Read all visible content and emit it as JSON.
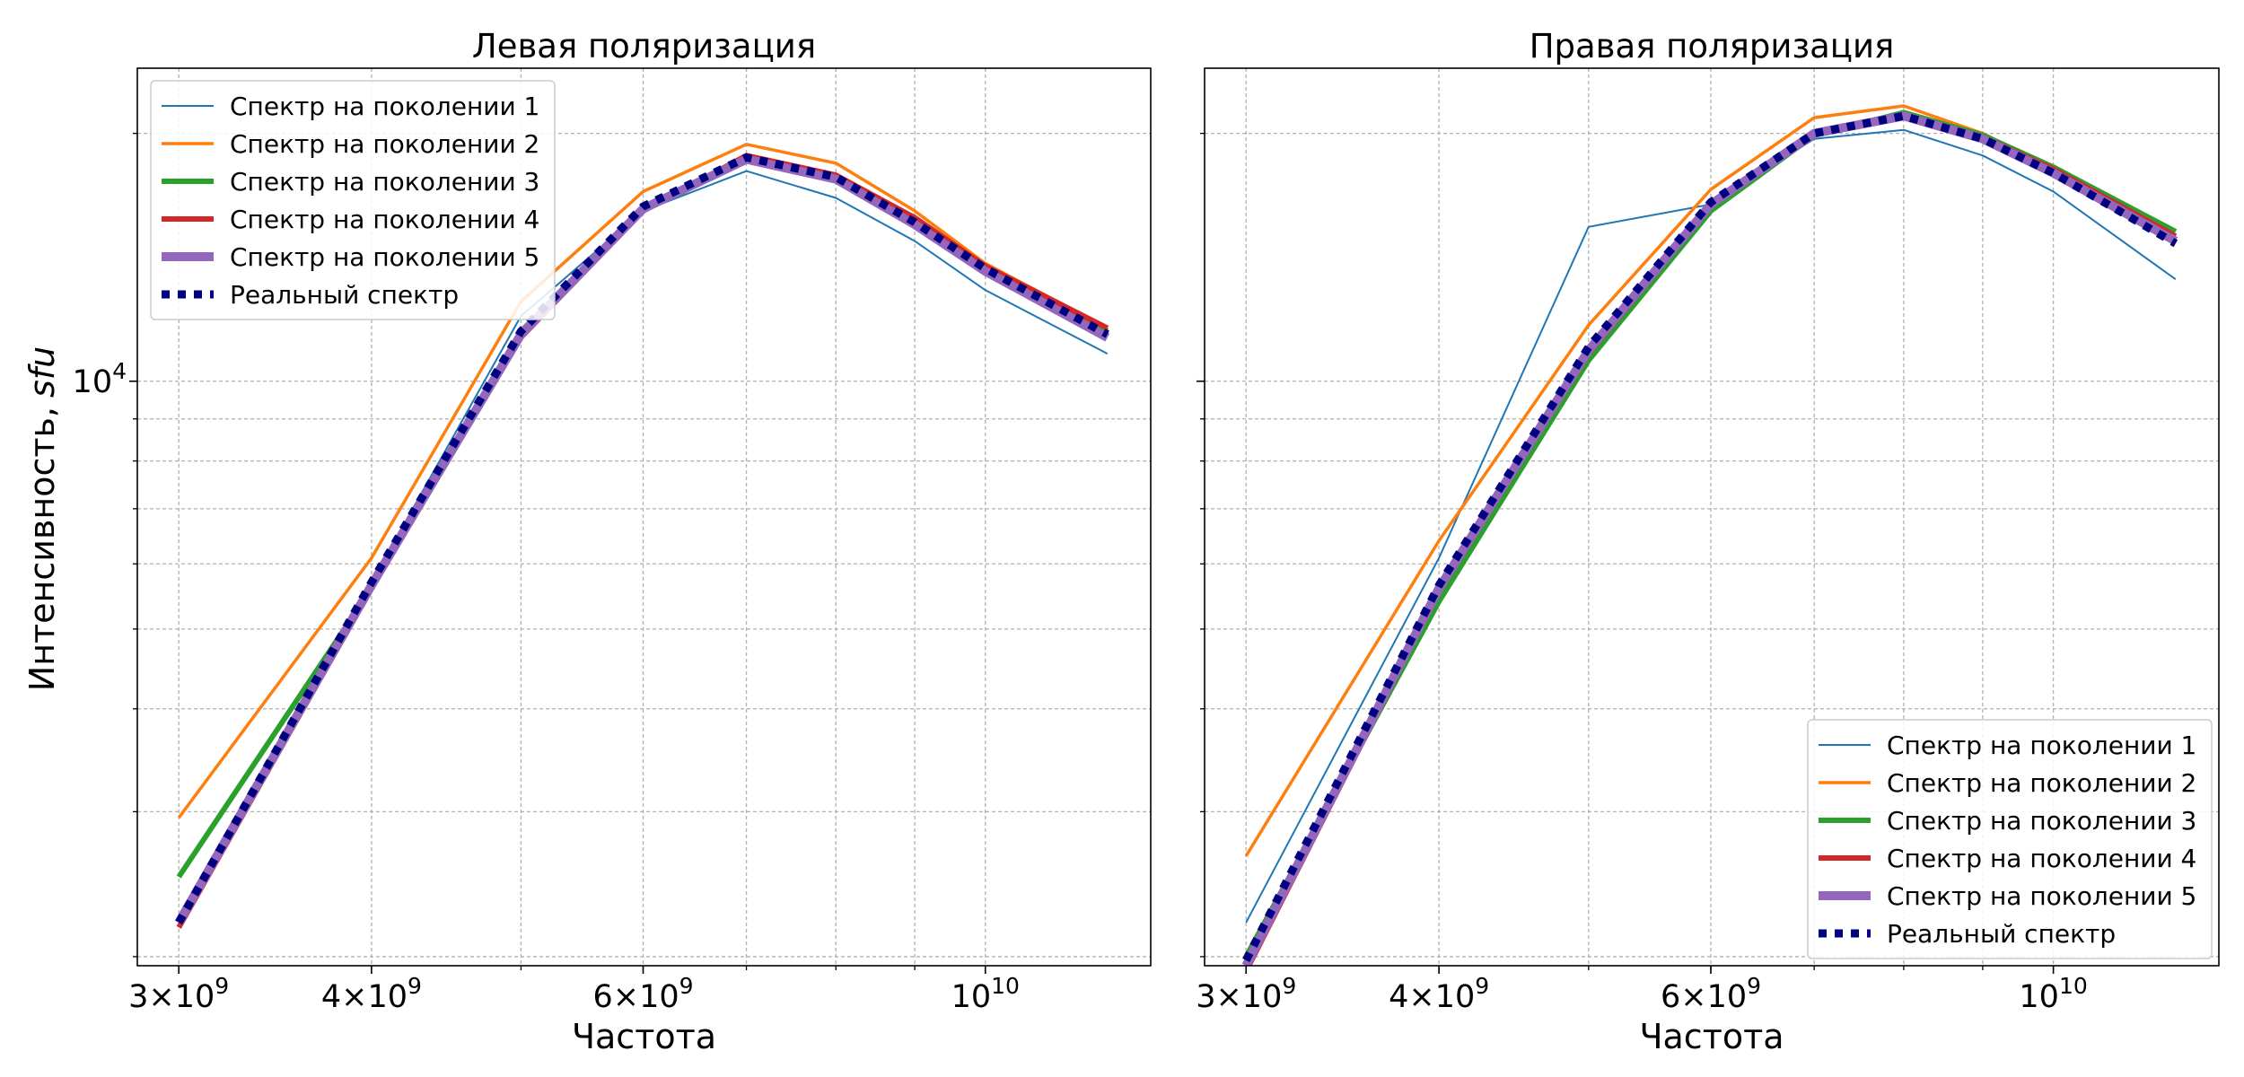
{
  "figure": {
    "ylabel_main": "Интенсивность,",
    "ylabel_unit": "sfu"
  },
  "chart_data": [
    {
      "type": "line",
      "title": "Левая поляризация",
      "xlabel": "Частота",
      "xscale": "log",
      "yscale": "log",
      "xlim": [
        2820000000.0,
        12800000000.0
      ],
      "ylim": [
        1950,
        24000
      ],
      "xticks": [
        {
          "value": 3000000000.0,
          "mant": "3",
          "exp": "9"
        },
        {
          "value": 4000000000.0,
          "mant": "4",
          "exp": "9"
        },
        {
          "value": 6000000000.0,
          "mant": "6",
          "exp": "9"
        },
        {
          "value": 10000000000.0,
          "mant": "",
          "exp": "10"
        }
      ],
      "yticks": [
        {
          "value": 10000,
          "exp": "4"
        }
      ],
      "grid": true,
      "legend_position": "upper-left",
      "x": [
        3000000000.0,
        4000000000.0,
        5000000000.0,
        6000000000.0,
        7000000000.0,
        8000000000.0,
        9000000000.0,
        10000000000.0,
        12000000000.0
      ],
      "series": [
        {
          "name": "Спектр на поколении 1",
          "color": "#1f77b4",
          "style": "thin",
          "values": [
            2200,
            5700,
            12000,
            16100,
            18000,
            16700,
            14800,
            12900,
            10800
          ]
        },
        {
          "name": "Спектр на поколении 2",
          "color": "#ff7f0e",
          "style": "medium",
          "values": [
            2950,
            6100,
            12500,
            17000,
            19400,
            18400,
            16100,
            13900,
            11600
          ]
        },
        {
          "name": "Спектр на поколении 3",
          "color": "#2ca02c",
          "style": "thick",
          "values": [
            2500,
            5600,
            11500,
            16100,
            18700,
            17700,
            15700,
            13700,
            11500
          ]
        },
        {
          "name": "Спектр на поколении 4",
          "color": "#d62728",
          "style": "thick",
          "values": [
            2170,
            5600,
            11300,
            16100,
            18800,
            17800,
            15800,
            13800,
            11600
          ]
        },
        {
          "name": "Спектр на поколении 5",
          "color": "#9467bd",
          "style": "xthick",
          "values": [
            2200,
            5650,
            11400,
            16200,
            18600,
            17600,
            15500,
            13600,
            11300
          ]
        },
        {
          "name": "Реальный спектр",
          "color": "#000080",
          "style": "dotted",
          "values": [
            2200,
            5700,
            11500,
            16300,
            18700,
            17700,
            15600,
            13700,
            11400
          ]
        }
      ]
    },
    {
      "type": "line",
      "title": "Правая поляризация",
      "xlabel": "Частота",
      "xscale": "log",
      "yscale": "log",
      "xlim": [
        2820000000.0,
        12800000000.0
      ],
      "ylim": [
        1950,
        24000
      ],
      "xticks": [
        {
          "value": 3000000000.0,
          "mant": "3",
          "exp": "9"
        },
        {
          "value": 4000000000.0,
          "mant": "4",
          "exp": "9"
        },
        {
          "value": 6000000000.0,
          "mant": "6",
          "exp": "9"
        },
        {
          "value": 10000000000.0,
          "mant": "",
          "exp": "10"
        }
      ],
      "yticks": [
        {
          "value": 10000,
          "exp": "4"
        }
      ],
      "grid": true,
      "legend_position": "lower-right",
      "x": [
        3000000000.0,
        4000000000.0,
        5000000000.0,
        6000000000.0,
        7000000000.0,
        8000000000.0,
        9000000000.0,
        10000000000.0,
        12000000000.0
      ],
      "series": [
        {
          "name": "Спектр на поколении 1",
          "color": "#1f77b4",
          "style": "thin",
          "values": [
            2200,
            6100,
            15400,
            16400,
            19700,
            20200,
            18800,
            17000,
            13300
          ]
        },
        {
          "name": "Спектр на поколении 2",
          "color": "#ff7f0e",
          "style": "medium",
          "values": [
            2650,
            6400,
            11700,
            17100,
            20900,
            21600,
            20000,
            18100,
            15000
          ]
        },
        {
          "name": "Спектр на поколении 3",
          "color": "#2ca02c",
          "style": "thick",
          "values": [
            2000,
            5400,
            10600,
            16100,
            19900,
            21200,
            19900,
            18200,
            15200
          ]
        },
        {
          "name": "Спектр на поколении 4",
          "color": "#d62728",
          "style": "thick",
          "values": [
            1920,
            5550,
            10800,
            16300,
            20000,
            21100,
            19800,
            18100,
            15000
          ]
        },
        {
          "name": "Спектр на поколении 5",
          "color": "#9467bd",
          "style": "xthick",
          "values": [
            1950,
            5600,
            10900,
            16400,
            20000,
            21000,
            19700,
            17900,
            14800
          ]
        },
        {
          "name": "Реальный спектр",
          "color": "#000080",
          "style": "dotted",
          "values": [
            1980,
            5650,
            11000,
            16500,
            20000,
            21000,
            19700,
            17900,
            14700
          ]
        }
      ]
    }
  ]
}
